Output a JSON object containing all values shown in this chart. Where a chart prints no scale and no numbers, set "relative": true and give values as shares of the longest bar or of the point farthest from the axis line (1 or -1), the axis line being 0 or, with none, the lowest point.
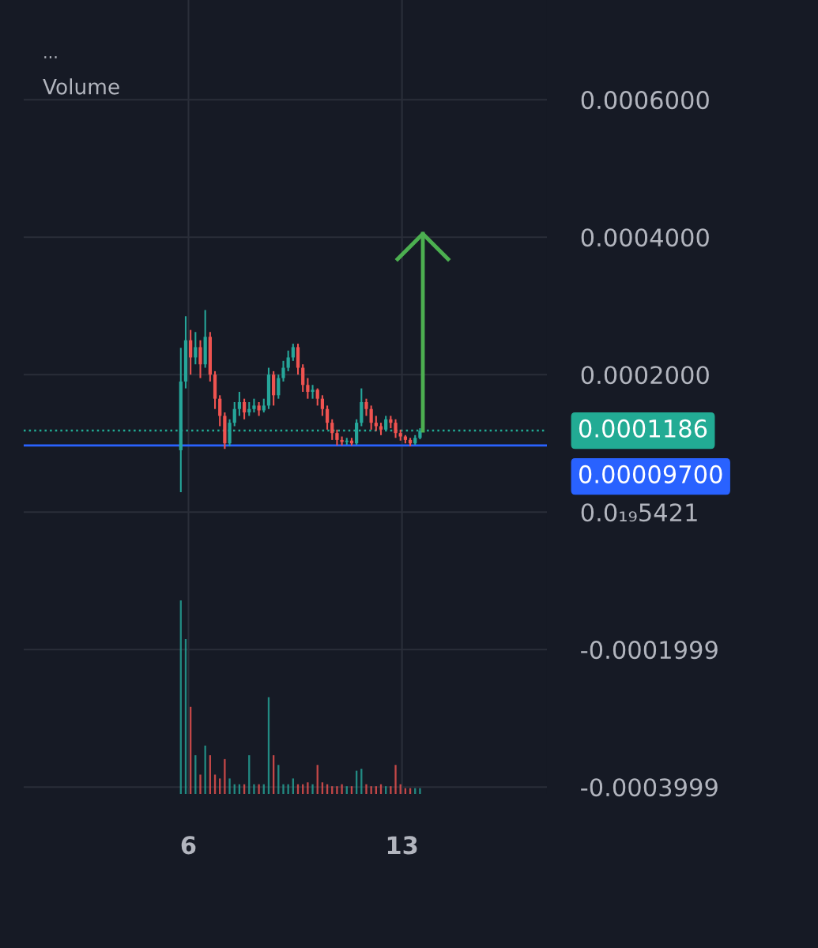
{
  "chart_data": [
    {
      "type": "candlestick",
      "x": [
        5.75,
        5.91,
        6.07,
        6.23,
        6.39,
        6.55,
        6.71,
        6.87,
        7.03,
        7.19,
        7.35,
        7.51,
        7.67,
        7.83,
        7.99,
        8.15,
        8.31,
        8.47,
        8.63,
        8.79,
        8.95,
        9.11,
        9.27,
        9.43,
        9.59,
        9.75,
        9.91,
        10.07,
        10.23,
        10.39,
        10.55,
        10.71,
        10.87,
        11.03,
        11.19,
        11.35,
        11.51,
        11.67,
        11.83,
        11.99,
        12.15,
        12.31,
        12.47,
        12.63,
        12.79,
        12.95,
        13.11,
        13.27,
        13.43,
        13.59
      ],
      "ohlc": [
        [
          9e-05,
          0.000239,
          2.9e-05,
          0.00019
        ],
        [
          0.00019,
          0.000285,
          0.00018,
          0.00025
        ],
        [
          0.00025,
          0.000265,
          0.0002,
          0.000225
        ],
        [
          0.000225,
          0.000262,
          0.000215,
          0.00024
        ],
        [
          0.00024,
          0.00025,
          0.000195,
          0.000215
        ],
        [
          0.000215,
          0.000294,
          0.00021,
          0.000255
        ],
        [
          0.000255,
          0.000262,
          0.00019,
          0.0002
        ],
        [
          0.0002,
          0.000205,
          0.00015,
          0.000165
        ],
        [
          0.000165,
          0.00017,
          0.000125,
          0.00014
        ],
        [
          0.00014,
          0.000145,
          9.2e-05,
          0.0001
        ],
        [
          0.0001,
          0.000135,
          9.6e-05,
          0.00013
        ],
        [
          0.00013,
          0.00016,
          0.000125,
          0.00015
        ],
        [
          0.00015,
          0.000175,
          0.00014,
          0.00016
        ],
        [
          0.00016,
          0.000165,
          0.000135,
          0.000145
        ],
        [
          0.000145,
          0.00016,
          0.00014,
          0.00015
        ],
        [
          0.00015,
          0.000165,
          0.000145,
          0.000155
        ],
        [
          0.000155,
          0.00016,
          0.00014,
          0.000148
        ],
        [
          0.000148,
          0.000165,
          0.000145,
          0.000155
        ],
        [
          0.000155,
          0.00021,
          0.00015,
          0.0002
        ],
        [
          0.0002,
          0.000205,
          0.000155,
          0.00017
        ],
        [
          0.00017,
          0.0002,
          0.000165,
          0.000195
        ],
        [
          0.000195,
          0.00022,
          0.00019,
          0.00021
        ],
        [
          0.00021,
          0.000235,
          0.000205,
          0.000225
        ],
        [
          0.000225,
          0.000245,
          0.00022,
          0.00024
        ],
        [
          0.00024,
          0.000245,
          0.0002,
          0.00021
        ],
        [
          0.00021,
          0.000215,
          0.000175,
          0.000185
        ],
        [
          0.000185,
          0.000195,
          0.000165,
          0.000175
        ],
        [
          0.000175,
          0.000185,
          0.000165,
          0.000178
        ],
        [
          0.000178,
          0.00018,
          0.000155,
          0.000165
        ],
        [
          0.000165,
          0.00017,
          0.00014,
          0.00015
        ],
        [
          0.00015,
          0.000155,
          0.00012,
          0.00013
        ],
        [
          0.00013,
          0.000135,
          0.000105,
          0.000115
        ],
        [
          0.000115,
          0.00012,
          9.7e-05,
          0.000105
        ],
        [
          0.000105,
          0.00011,
          9.7e-05,
          0.000102
        ],
        [
          0.000102,
          0.000108,
          9.8e-05,
          0.000104
        ],
        [
          0.000104,
          0.000108,
          9.7e-05,
          0.0001
        ],
        [
          0.0001,
          0.000135,
          9.8e-05,
          0.00013
        ],
        [
          0.00013,
          0.00018,
          0.000125,
          0.00016
        ],
        [
          0.00016,
          0.000165,
          0.00014,
          0.00015
        ],
        [
          0.00015,
          0.000155,
          0.00012,
          0.00013
        ],
        [
          0.00013,
          0.00014,
          0.000118,
          0.000125
        ],
        [
          0.000125,
          0.00013,
          0.000112,
          0.00012
        ],
        [
          0.00012,
          0.00014,
          0.000118,
          0.000135
        ],
        [
          0.000135,
          0.00014,
          0.000122,
          0.00013
        ],
        [
          0.00013,
          0.000135,
          0.000108,
          0.000115
        ],
        [
          0.000115,
          0.00012,
          0.000104,
          0.00011
        ],
        [
          0.00011,
          0.000112,
          0.0001,
          0.000105
        ],
        [
          0.000105,
          0.000108,
          9.6e-05,
          0.0001
        ],
        [
          0.0001,
          0.000112,
          9.8e-05,
          0.000108
        ],
        [
          0.000108,
          0.000122,
          0.000106,
          0.000118
        ]
      ],
      "colors": [
        "#26a69a",
        "#26a69a",
        "#ef5350",
        "#26a69a",
        "#ef5350",
        "#26a69a",
        "#ef5350",
        "#ef5350",
        "#ef5350",
        "#ef5350",
        "#26a69a",
        "#26a69a",
        "#26a69a",
        "#ef5350",
        "#26a69a",
        "#26a69a",
        "#ef5350",
        "#26a69a",
        "#26a69a",
        "#ef5350",
        "#26a69a",
        "#26a69a",
        "#26a69a",
        "#26a69a",
        "#ef5350",
        "#ef5350",
        "#ef5350",
        "#26a69a",
        "#ef5350",
        "#ef5350",
        "#ef5350",
        "#ef5350",
        "#ef5350",
        "#ef5350",
        "#26a69a",
        "#ef5350",
        "#26a69a",
        "#26a69a",
        "#ef5350",
        "#ef5350",
        "#ef5350",
        "#ef5350",
        "#26a69a",
        "#ef5350",
        "#ef5350",
        "#ef5350",
        "#ef5350",
        "#ef5350",
        "#26a69a",
        "#26a69a"
      ],
      "xlim": [
        0.6,
        17.75
      ],
      "ylim": [
        -0.00041,
        0.000745
      ],
      "xticks": [
        6,
        13
      ],
      "yticks": [
        {
          "value": 0.0006,
          "label": "0.0006000"
        },
        {
          "value": 0.0004,
          "label": "0.0004000"
        },
        {
          "value": 0.0002,
          "label": "0.0002000"
        },
        {
          "value": 0.0,
          "label": "0.0₁₉5421"
        },
        {
          "value": -0.0001999,
          "label": "-0.0001999"
        },
        {
          "value": -0.0003999,
          "label": "-0.0003999"
        }
      ],
      "grid": true,
      "ref_lines": [
        {
          "axis": "y",
          "value": 0.0001186,
          "label": "0.0001186",
          "color": "#22ab94",
          "line_style": "dotted"
        },
        {
          "axis": "y",
          "value": 9.7e-05,
          "label": "0.00009700",
          "color": "#2962ff",
          "line_style": "solid"
        }
      ],
      "annotations": [
        "...",
        "Volume"
      ]
    },
    {
      "type": "bar",
      "relative": true,
      "x": [
        5.75,
        5.91,
        6.07,
        6.23,
        6.39,
        6.55,
        6.71,
        6.87,
        7.03,
        7.19,
        7.35,
        7.51,
        7.67,
        7.83,
        7.99,
        8.15,
        8.31,
        8.47,
        8.63,
        8.79,
        8.95,
        9.11,
        9.27,
        9.43,
        9.59,
        9.75,
        9.91,
        10.07,
        10.23,
        10.39,
        10.55,
        10.71,
        10.87,
        11.03,
        11.19,
        11.35,
        11.51,
        11.67,
        11.83,
        11.99,
        12.15,
        12.31,
        12.47,
        12.63,
        12.79,
        12.95,
        13.11,
        13.27,
        13.43,
        13.59
      ],
      "values": [
        1.0,
        0.8,
        0.45,
        0.2,
        0.1,
        0.25,
        0.2,
        0.1,
        0.08,
        0.18,
        0.08,
        0.05,
        0.05,
        0.05,
        0.2,
        0.05,
        0.05,
        0.05,
        0.5,
        0.2,
        0.15,
        0.05,
        0.05,
        0.08,
        0.05,
        0.05,
        0.06,
        0.05,
        0.15,
        0.06,
        0.05,
        0.04,
        0.04,
        0.05,
        0.04,
        0.04,
        0.12,
        0.13,
        0.05,
        0.04,
        0.04,
        0.05,
        0.04,
        0.04,
        0.15,
        0.05,
        0.03,
        0.03,
        0.03,
        0.03
      ],
      "colors": [
        "#26a69a",
        "#26a69a",
        "#ef5350",
        "#26a69a",
        "#ef5350",
        "#26a69a",
        "#ef5350",
        "#ef5350",
        "#ef5350",
        "#ef5350",
        "#26a69a",
        "#26a69a",
        "#26a69a",
        "#ef5350",
        "#26a69a",
        "#26a69a",
        "#ef5350",
        "#26a69a",
        "#26a69a",
        "#ef5350",
        "#26a69a",
        "#26a69a",
        "#26a69a",
        "#26a69a",
        "#ef5350",
        "#ef5350",
        "#ef5350",
        "#26a69a",
        "#ef5350",
        "#ef5350",
        "#ef5350",
        "#ef5350",
        "#ef5350",
        "#ef5350",
        "#26a69a",
        "#ef5350",
        "#26a69a",
        "#26a69a",
        "#ef5350",
        "#ef5350",
        "#ef5350",
        "#ef5350",
        "#26a69a",
        "#ef5350",
        "#ef5350",
        "#ef5350",
        "#ef5350",
        "#ef5350",
        "#26a69a",
        "#26a69a"
      ],
      "xlim": [
        0.6,
        17.75
      ]
    }
  ]
}
